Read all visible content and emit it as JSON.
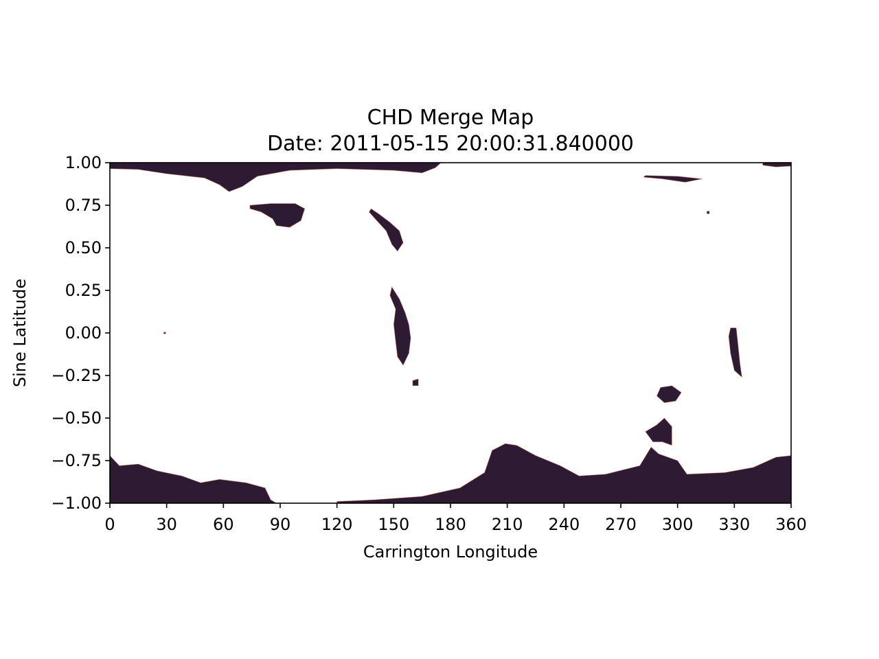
{
  "chart_data": {
    "type": "heatmap",
    "title": "CHD Merge Map",
    "subtitle": "Date: 2011-05-15 20:00:31.840000",
    "xlabel": "Carrington Longitude",
    "ylabel": "Sine Latitude",
    "xlim": [
      0,
      360
    ],
    "ylim": [
      -1.0,
      1.0
    ],
    "x_ticks": [
      0,
      30,
      60,
      90,
      120,
      150,
      180,
      210,
      240,
      270,
      300,
      330,
      360
    ],
    "x_tick_labels": [
      "0",
      "30",
      "60",
      "90",
      "120",
      "150",
      "180",
      "210",
      "240",
      "270",
      "300",
      "330",
      "360"
    ],
    "y_ticks": [
      1.0,
      0.75,
      0.5,
      0.25,
      0.0,
      -0.25,
      -0.5,
      -0.75,
      -1.0
    ],
    "y_tick_labels": [
      "1.00",
      "0.75",
      "0.50",
      "0.25",
      "0.00",
      "−0.25",
      "−0.50",
      "−0.75",
      "−1.00"
    ],
    "grid": false,
    "colors": {
      "detection": "#2d1b34",
      "detection_edge": "#e07a5a",
      "background": "#ffffff"
    },
    "regions": [
      {
        "name": "north-polar-band",
        "points": [
          [
            0,
            1.0
          ],
          [
            175,
            1.0
          ],
          [
            172,
            0.97
          ],
          [
            165,
            0.94
          ],
          [
            150,
            0.955
          ],
          [
            120,
            0.965
          ],
          [
            95,
            0.955
          ],
          [
            78,
            0.92
          ],
          [
            70,
            0.86
          ],
          [
            63,
            0.83
          ],
          [
            58,
            0.87
          ],
          [
            50,
            0.91
          ],
          [
            30,
            0.935
          ],
          [
            15,
            0.96
          ],
          [
            0,
            0.965
          ]
        ]
      },
      {
        "name": "north-lobe-90",
        "points": [
          [
            74,
            0.75
          ],
          [
            85,
            0.76
          ],
          [
            98,
            0.76
          ],
          [
            103,
            0.73
          ],
          [
            101,
            0.66
          ],
          [
            95,
            0.62
          ],
          [
            88,
            0.63
          ],
          [
            86,
            0.67
          ],
          [
            80,
            0.71
          ],
          [
            74,
            0.73
          ]
        ]
      },
      {
        "name": "north-strip-300",
        "points": [
          [
            283,
            0.925
          ],
          [
            300,
            0.92
          ],
          [
            313,
            0.905
          ],
          [
            304,
            0.885
          ],
          [
            292,
            0.905
          ],
          [
            282,
            0.915
          ]
        ]
      },
      {
        "name": "north-edge-right",
        "points": [
          [
            345,
            1.0
          ],
          [
            360,
            1.0
          ],
          [
            360,
            0.98
          ],
          [
            352,
            0.975
          ],
          [
            345,
            0.985
          ]
        ]
      },
      {
        "name": "filament-145",
        "points": [
          [
            138,
            0.73
          ],
          [
            142,
            0.7
          ],
          [
            148,
            0.65
          ],
          [
            153,
            0.6
          ],
          [
            155,
            0.53
          ],
          [
            152,
            0.48
          ],
          [
            149,
            0.52
          ],
          [
            146,
            0.6
          ],
          [
            141,
            0.66
          ],
          [
            137,
            0.71
          ]
        ]
      },
      {
        "name": "filament-153-equator",
        "points": [
          [
            149,
            0.27
          ],
          [
            153,
            0.2
          ],
          [
            156,
            0.12
          ],
          [
            158,
            0.05
          ],
          [
            159,
            -0.03
          ],
          [
            158,
            -0.12
          ],
          [
            155,
            -0.19
          ],
          [
            152,
            -0.14
          ],
          [
            151,
            -0.05
          ],
          [
            150,
            0.05
          ],
          [
            151,
            0.14
          ],
          [
            148,
            0.22
          ]
        ]
      },
      {
        "name": "spot-161",
        "points": [
          [
            160,
            -0.28
          ],
          [
            163,
            -0.27
          ],
          [
            163,
            -0.31
          ],
          [
            160,
            -0.31
          ]
        ]
      },
      {
        "name": "spot-29",
        "points": [
          [
            28.5,
            0.005
          ],
          [
            29.5,
            0.005
          ],
          [
            29.5,
            -0.005
          ],
          [
            28.5,
            -0.005
          ]
        ]
      },
      {
        "name": "spot-316",
        "points": [
          [
            315.5,
            0.715
          ],
          [
            316.8,
            0.715
          ],
          [
            316.8,
            0.7
          ],
          [
            315.5,
            0.7
          ]
        ]
      },
      {
        "name": "filament-330",
        "points": [
          [
            328,
            0.03
          ],
          [
            331,
            0.03
          ],
          [
            332,
            -0.07
          ],
          [
            333,
            -0.18
          ],
          [
            334,
            -0.26
          ],
          [
            330,
            -0.22
          ],
          [
            328,
            -0.12
          ],
          [
            327,
            -0.02
          ]
        ]
      },
      {
        "name": "spot-296",
        "points": [
          [
            291,
            -0.32
          ],
          [
            297,
            -0.31
          ],
          [
            302,
            -0.35
          ],
          [
            299,
            -0.4
          ],
          [
            293,
            -0.41
          ],
          [
            289,
            -0.37
          ]
        ]
      },
      {
        "name": "south-plume-290",
        "points": [
          [
            283,
            -0.58
          ],
          [
            289,
            -0.54
          ],
          [
            293,
            -0.5
          ],
          [
            297,
            -0.55
          ],
          [
            297,
            -0.66
          ],
          [
            292,
            -0.64
          ],
          [
            287,
            -0.64
          ]
        ]
      },
      {
        "name": "south-polar-band-left",
        "points": [
          [
            0,
            -1.0
          ],
          [
            88,
            -1.0
          ],
          [
            85,
            -0.98
          ],
          [
            82,
            -0.91
          ],
          [
            72,
            -0.88
          ],
          [
            58,
            -0.86
          ],
          [
            48,
            -0.88
          ],
          [
            38,
            -0.84
          ],
          [
            25,
            -0.81
          ],
          [
            15,
            -0.77
          ],
          [
            5,
            -0.78
          ],
          [
            0,
            -0.72
          ]
        ]
      },
      {
        "name": "south-polar-band-right",
        "points": [
          [
            120,
            -1.0
          ],
          [
            360,
            -1.0
          ],
          [
            360,
            -0.72
          ],
          [
            352,
            -0.73
          ],
          [
            340,
            -0.79
          ],
          [
            325,
            -0.82
          ],
          [
            305,
            -0.83
          ],
          [
            300,
            -0.75
          ],
          [
            290,
            -0.71
          ],
          [
            286,
            -0.67
          ],
          [
            280,
            -0.78
          ],
          [
            262,
            -0.83
          ],
          [
            248,
            -0.84
          ],
          [
            238,
            -0.78
          ],
          [
            225,
            -0.72
          ],
          [
            215,
            -0.66
          ],
          [
            209,
            -0.65
          ],
          [
            202,
            -0.69
          ],
          [
            198,
            -0.82
          ],
          [
            185,
            -0.91
          ],
          [
            165,
            -0.96
          ],
          [
            140,
            -0.98
          ],
          [
            120,
            -0.99
          ]
        ]
      }
    ]
  }
}
